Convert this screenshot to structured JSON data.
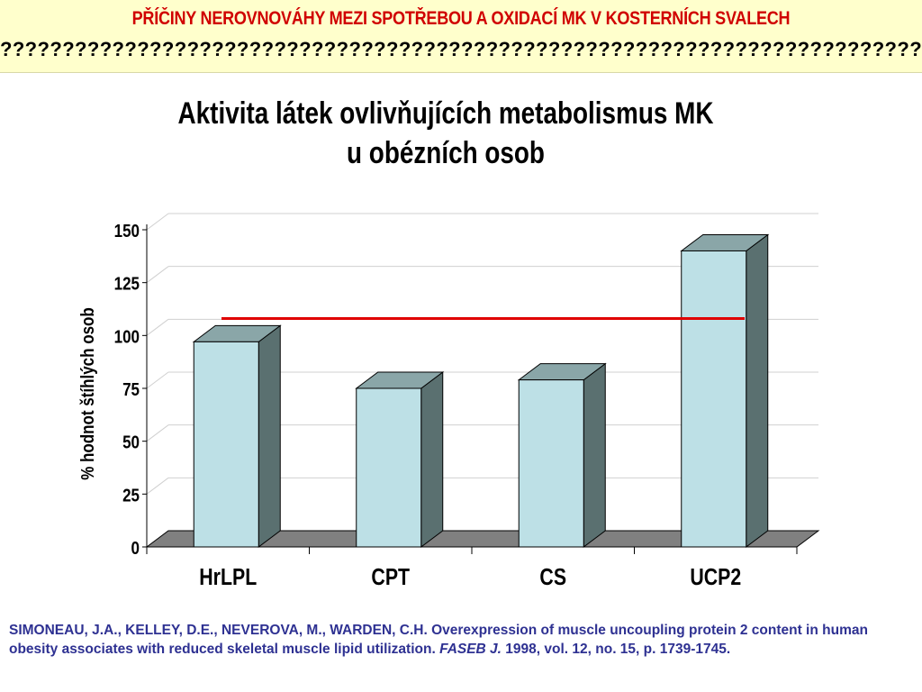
{
  "header": {
    "title": "PŘÍČINY NEROVNOVÁHY MEZI SPOTŘEBOU A OXIDACÍ MK V KOSTERNÍCH SVALECH",
    "subtitle": "??????????????????????????????????????????????????????????????????????????"
  },
  "chart_data": {
    "type": "bar",
    "title_line1": "Aktivita látek ovlivňujících  metabolismus MK",
    "title_line2": "u obézních osob",
    "ylabel": "% hodnot štíhlých osob",
    "xlabel": "",
    "categories": [
      "HrLPL",
      "CPT",
      "CS",
      "UCP2"
    ],
    "values": [
      97,
      75,
      79,
      140
    ],
    "ylim": [
      0,
      150
    ],
    "yticks": [
      0,
      25,
      50,
      75,
      100,
      125,
      150
    ],
    "reference_line": 108,
    "grid": true,
    "three_d": true,
    "colors": {
      "bar_front": "#bde0e6",
      "bar_side": "#5a7070",
      "bar_top": "#8aa6a8",
      "floor": "#808080",
      "reference": "#e00000"
    }
  },
  "citation": {
    "text": "SIMONEAU, J.A., KELLEY, D.E., NEVEROVA, M., WARDEN, C.H. Overexpression of muscle uncoupling protein 2 content in human obesity associates with reduced skeletal muscle lipid utilization. ",
    "journal": "FASEB J.",
    "tail": " 1998, vol. 12, no. 15, p. 1739-1745."
  }
}
